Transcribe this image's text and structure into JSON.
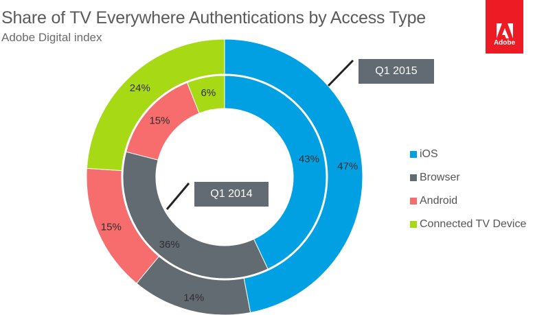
{
  "header": {
    "title": "Share of TV Everywhere Authentications by Access Type",
    "subtitle": "Adobe Digital index",
    "logo_text": "Adobe"
  },
  "colors": {
    "iOS": "#00a0e3",
    "Browser": "#636b72",
    "Android": "#f76c6c",
    "Connected TV Device": "#a8d915",
    "logo": "#ed1c24",
    "callout": "#626b73"
  },
  "chart_data": {
    "type": "pie",
    "variant": "nested-donut",
    "title": "Share of TV Everywhere Authentications by Access Type",
    "subtitle": "Adobe Digital index",
    "categories": [
      "iOS",
      "Browser",
      "Android",
      "Connected TV Device"
    ],
    "series": [
      {
        "name": "Q1 2015",
        "ring": "outer",
        "values": [
          47,
          14,
          15,
          24
        ],
        "labels": [
          "47%",
          "14%",
          "15%",
          "24%"
        ]
      },
      {
        "name": "Q1 2014",
        "ring": "inner",
        "values": [
          43,
          36,
          15,
          6
        ],
        "labels": [
          "43%",
          "36%",
          "15%",
          "6%"
        ]
      }
    ],
    "legend": {
      "position": "right",
      "entries": [
        "iOS",
        "Browser",
        "Android",
        "Connected TV Device"
      ]
    }
  }
}
